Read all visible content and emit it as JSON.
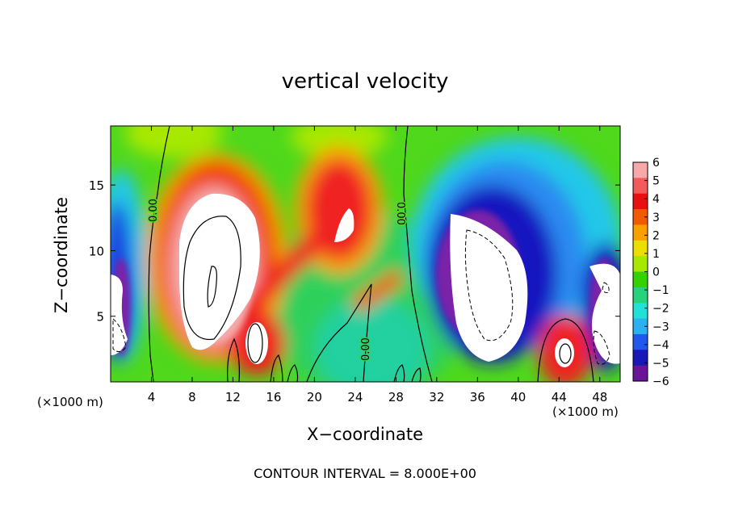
{
  "chart_data": {
    "type": "heatmap",
    "title": "vertical velocity",
    "xlabel": "X−coordinate",
    "ylabel": "Z−coordinate",
    "x_unit_label_left": "(×1000 m)",
    "x_unit_label_right": "(×1000 m)",
    "footer": "CONTOUR INTERVAL = 8.000E+00",
    "xlim": [
      0,
      50
    ],
    "ylim": [
      0,
      19.5
    ],
    "x_ticks": [
      4,
      8,
      12,
      16,
      20,
      24,
      28,
      32,
      36,
      40,
      44,
      48
    ],
    "y_ticks": [
      5,
      10,
      15
    ],
    "colorbar": {
      "range": [
        -6,
        6
      ],
      "ticks": [
        "6",
        "5",
        "4",
        "3",
        "2",
        "1",
        "0",
        "−1",
        "−2",
        "−3",
        "−4",
        "−5",
        "−6"
      ],
      "colors": [
        "#f7a8a8",
        "#f35a5a",
        "#e81010",
        "#f25a00",
        "#f7a000",
        "#eadf00",
        "#a8e800",
        "#36d200",
        "#26d27c",
        "#20e0d8",
        "#2ab2f0",
        "#2058ee",
        "#1818b8",
        "#6a1498"
      ]
    },
    "contour_labels": [
      "0.00",
      "0.00",
      "0.00"
    ],
    "features": [
      {
        "kind": "updraft",
        "x": 10,
        "z": 8.5,
        "value": 16
      },
      {
        "kind": "updraft",
        "x": 24,
        "z": 12,
        "value": 8
      },
      {
        "kind": "updraft",
        "x": 14,
        "z": 3,
        "value": 8
      },
      {
        "kind": "updraft",
        "x": 44.5,
        "z": 2,
        "value": 8
      },
      {
        "kind": "downdraft",
        "x": 37.5,
        "z": 8.5,
        "value": -8
      },
      {
        "kind": "downdraft",
        "x": 1,
        "z": 5,
        "value": -8
      },
      {
        "kind": "downdraft",
        "x": 48.5,
        "z": 5,
        "value": -8
      }
    ]
  }
}
